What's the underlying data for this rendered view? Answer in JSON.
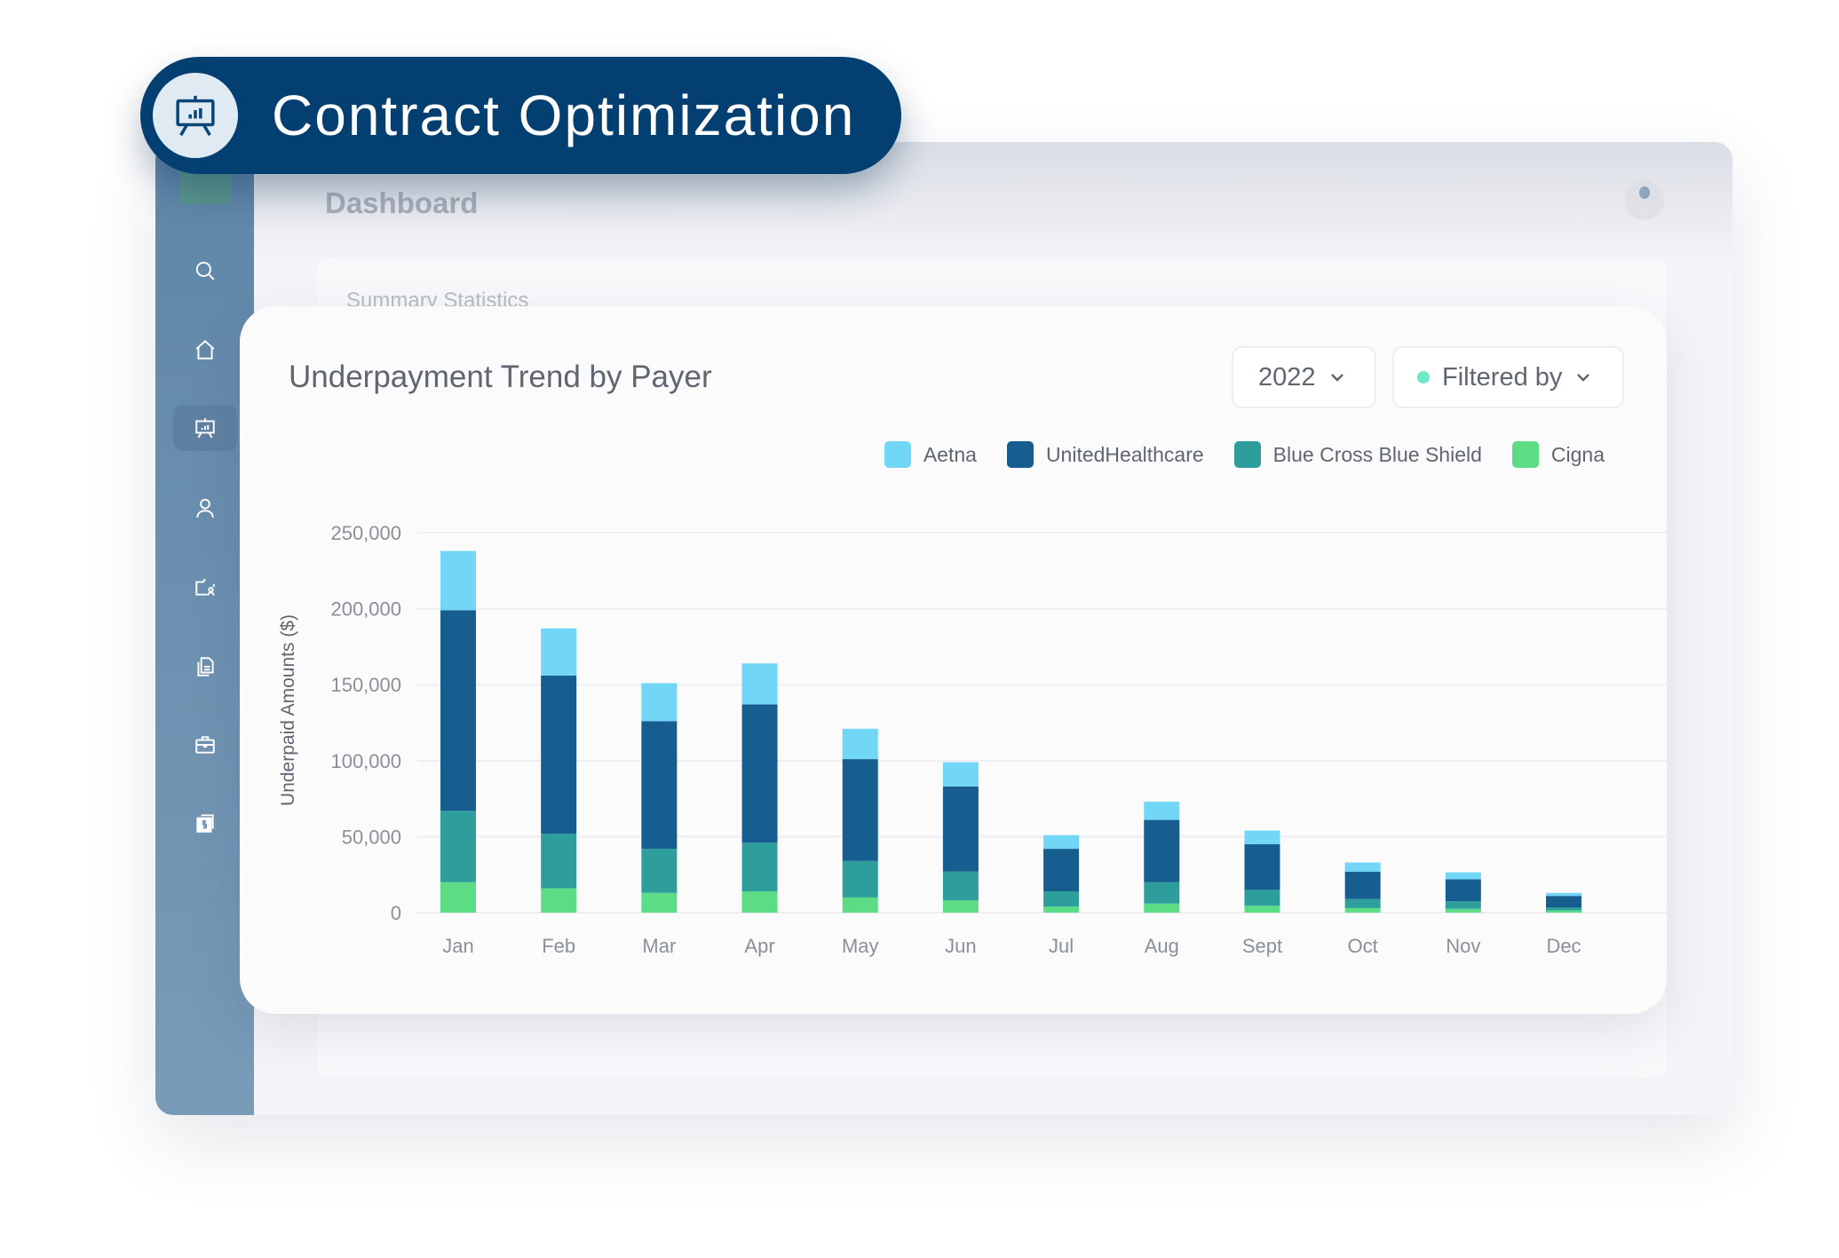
{
  "banner": {
    "title": "Contract Optimization",
    "icon": "presentation-chart-icon"
  },
  "app": {
    "page_title": "Dashboard",
    "section_title": "Summary Statistics",
    "sidebar": [
      {
        "icon": "search-icon"
      },
      {
        "icon": "home-icon"
      },
      {
        "icon": "presentation-chart-icon",
        "active": true
      },
      {
        "icon": "user-icon"
      },
      {
        "icon": "folder-user-icon"
      },
      {
        "icon": "documents-icon"
      },
      {
        "icon": "briefcase-icon"
      },
      {
        "icon": "billing-dollar-icon"
      }
    ]
  },
  "card": {
    "year_select": "2022",
    "filter_label": "Filtered by"
  },
  "colors": {
    "Aetna": "#72d6f6",
    "UnitedHealthcare": "#155e8f",
    "Blue Cross Blue Shield": "#2e9e9d",
    "Cigna": "#5ddc86"
  },
  "chart_data": {
    "type": "bar",
    "stacked": true,
    "title": "Underpayment Trend by Payer",
    "xlabel": "",
    "ylabel": "Underpaid Amounts ($)",
    "ylim": [
      0,
      250000
    ],
    "yticks": [
      "0",
      "50,000",
      "100,000",
      "150,000",
      "200,000",
      "250,000"
    ],
    "ytick_values": [
      0,
      50000,
      100000,
      150000,
      200000,
      250000
    ],
    "grid": true,
    "legend_position": "top-right",
    "categories": [
      "Jan",
      "Feb",
      "Mar",
      "Apr",
      "May",
      "Jun",
      "Jul",
      "Aug",
      "Sept",
      "Oct",
      "Nov",
      "Dec"
    ],
    "series": [
      {
        "name": "Cigna",
        "values": [
          20000,
          16000,
          13000,
          14000,
          10000,
          8000,
          4000,
          6000,
          4500,
          3000,
          2500,
          1500
        ]
      },
      {
        "name": "Blue Cross Blue Shield",
        "values": [
          47000,
          36000,
          29000,
          32000,
          24000,
          19000,
          10000,
          14000,
          10500,
          6000,
          5000,
          2000
        ]
      },
      {
        "name": "UnitedHealthcare",
        "values": [
          132000,
          104000,
          84000,
          91000,
          67000,
          56000,
          28000,
          41000,
          30000,
          18000,
          14500,
          7500
        ]
      },
      {
        "name": "Aetna",
        "values": [
          39000,
          31000,
          25000,
          27000,
          20000,
          16000,
          9000,
          12000,
          9000,
          6000,
          4500,
          2000
        ]
      }
    ],
    "legend_order": [
      "Aetna",
      "UnitedHealthcare",
      "Blue Cross Blue Shield",
      "Cigna"
    ]
  }
}
